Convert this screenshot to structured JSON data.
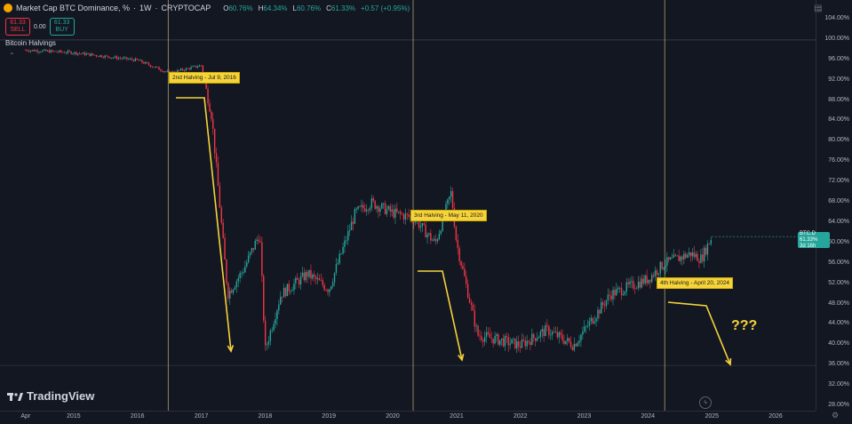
{
  "header": {
    "title": "Market Cap BTC Dominance, %",
    "separator": "·",
    "interval": "1W",
    "source": "CRYPTOCAP",
    "ohlc": [
      {
        "key": "O",
        "value": "60.76%"
      },
      {
        "key": "H",
        "value": "64.34%"
      },
      {
        "key": "L",
        "value": "60.76%"
      },
      {
        "key": "C",
        "value": "61.33%"
      }
    ],
    "change": "+0.57 (+0.95%)"
  },
  "trade": {
    "sell_price": "61.33",
    "sell_label": "SELL",
    "spread": "0.00",
    "buy_price": "61.33",
    "buy_label": "BUY"
  },
  "indicator": {
    "name": "Bitcoin Halvings",
    "collapse_icon": "chevron-up-icon"
  },
  "y_axis": {
    "labels": [
      "104.00%",
      "100.00%",
      "96.00%",
      "92.00%",
      "88.00%",
      "84.00%",
      "80.00%",
      "76.00%",
      "72.00%",
      "68.00%",
      "64.00%",
      "60.00%",
      "56.00%",
      "52.00%",
      "48.00%",
      "44.00%",
      "40.00%",
      "36.00%",
      "32.00%",
      "28.00%"
    ]
  },
  "x_axis": {
    "labels": [
      "Apr",
      "2015",
      "2016",
      "2017",
      "2018",
      "2019",
      "2020",
      "2021",
      "2022",
      "2023",
      "2024",
      "2025",
      "2026"
    ]
  },
  "price_badge": {
    "symbol": "BTC.D",
    "value": "61.33%",
    "countdown": "3d 16h"
  },
  "annotations": {
    "halving2": "2nd Halving - Jul 9, 2016",
    "halving3": "3rd Halving - May 11, 2020",
    "halving4": "4th Halving - April 20, 2024",
    "question": "???"
  },
  "branding": {
    "name": "TradingView"
  },
  "colors": {
    "background": "#131722",
    "up": "#26a69a",
    "down": "#f23645",
    "annotation": "#f5d33a",
    "halving_line": "#d6c27a"
  },
  "chart_data": {
    "type": "line",
    "series": [
      {
        "name": "BTC.D",
        "x": [
          "2014-04",
          "2015-01",
          "2016-01",
          "2016-07",
          "2017-01",
          "2017-03",
          "2017-06",
          "2017-09",
          "2017-12",
          "2018-01",
          "2018-04",
          "2018-09",
          "2019-01",
          "2019-06",
          "2019-09",
          "2020-01",
          "2020-05",
          "2020-09",
          "2020-12",
          "2021-01",
          "2021-05",
          "2021-09",
          "2022-01",
          "2022-06",
          "2022-11",
          "2023-06",
          "2024-01",
          "2024-04",
          "2024-09",
          "2024-11",
          "2025-01"
        ],
        "values": [
          98,
          97.5,
          96,
          93.5,
          95,
          85,
          50,
          55,
          62,
          39,
          50,
          54,
          51,
          66,
          68,
          66,
          65,
          60,
          70,
          60,
          42,
          41,
          40,
          43,
          40,
          50,
          53,
          56,
          58,
          57,
          61.33
        ]
      }
    ],
    "halvings": [
      "2016-07-09",
      "2020-05-11",
      "2024-04-20"
    ],
    "ylim": [
      28,
      104
    ],
    "grid": false
  }
}
